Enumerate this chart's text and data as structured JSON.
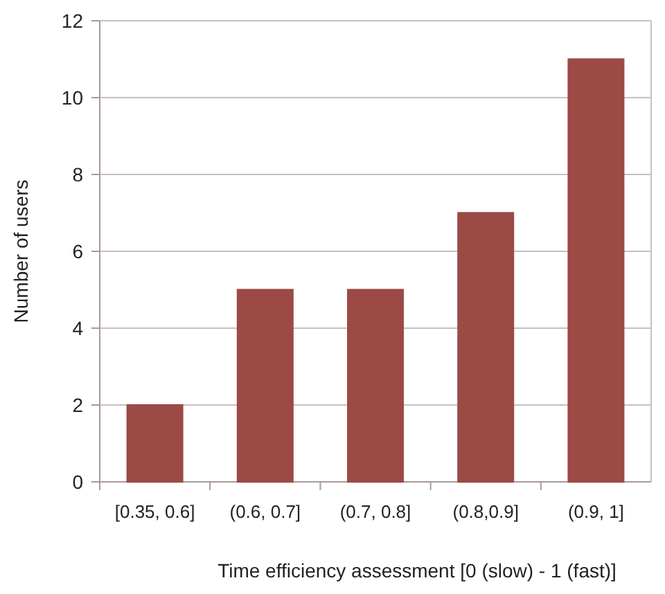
{
  "chart_data": {
    "type": "bar",
    "xlabel": "Time efficiency assessment [0 (slow) - 1 (fast)]",
    "ylabel": "Number of users",
    "categories": [
      "[0.35, 0.6]",
      "(0.6, 0.7]",
      "(0.7, 0.8]",
      "(0.8,0.9]",
      "(0.9, 1]"
    ],
    "values": [
      2,
      5,
      5,
      7,
      11
    ],
    "color": "#9b4a46",
    "ylim": [
      0,
      12
    ],
    "yticks": [
      0,
      2,
      4,
      6,
      8,
      10,
      12
    ],
    "grid": "y"
  }
}
